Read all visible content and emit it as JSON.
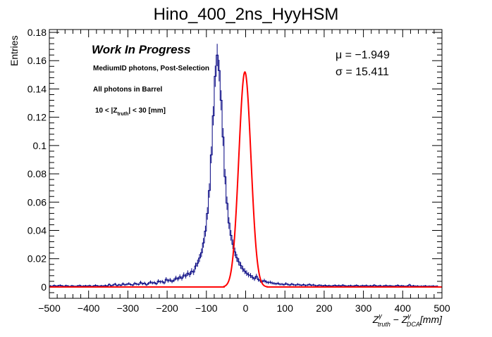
{
  "chart_data": {
    "type": "histogram",
    "title": "Hino_400_2ns_HyyHSM",
    "xlabel": "Z^γ_truth − Z^γ_DCA [mm]",
    "xlabel_parts": {
      "z1": "Z",
      "sup1": "γ",
      "sub1": "truth",
      "minus": " − ",
      "z2": "Z",
      "sup2": "γ",
      "sub2": "DCA",
      "unit": "[mm]"
    },
    "ylabel": "Entries",
    "xlim": [
      -500,
      500
    ],
    "ylim": [
      -0.008,
      0.182
    ],
    "x_ticks": [
      -500,
      -400,
      -300,
      -200,
      -100,
      0,
      100,
      200,
      300,
      400,
      500
    ],
    "x_tick_labels": [
      "−500",
      "−400",
      "−300",
      "−200",
      "−100",
      "0",
      "100",
      "200",
      "300",
      "400",
      "500"
    ],
    "y_ticks": [
      0,
      0.02,
      0.04,
      0.06,
      0.08,
      0.1,
      0.12,
      0.14,
      0.16,
      0.18
    ],
    "y_tick_labels": [
      "0",
      "0.02",
      "0.04",
      "0.06",
      "0.08",
      "0.1",
      "0.12",
      "0.14",
      "0.16",
      "0.18"
    ],
    "annotations": {
      "status": "Work In Progress",
      "selection": "MediumID photons, Post-Selection",
      "region": "All photons in Barrel",
      "cut_prefix": "10 < |Z",
      "cut_sub": "truth",
      "cut_suffix": "| < 30 [mm]"
    },
    "fit_results": {
      "mu_label": "μ = −1.949",
      "sigma_label": "σ = 15.411",
      "mu": -1.949,
      "sigma": 15.411,
      "amplitude": 0.152
    },
    "histogram": {
      "name": "data",
      "color": "#00007f",
      "bin_width": 5,
      "x_start": -500,
      "values": [
        0.0007,
        0.0005,
        0.0011,
        0.0006,
        0.0009,
        0.0012,
        0.0008,
        0.0004,
        0.001,
        0.0007,
        0.0003,
        0.0009,
        0.0006,
        0.0004,
        0.0008,
        0.0011,
        0.0005,
        0.0007,
        0.0009,
        0.0006,
        0.001,
        0.0004,
        0.0007,
        0.0012,
        0.0008,
        0.0005,
        0.0009,
        0.0006,
        0.0011,
        0.0007,
        0.0018,
        0.0009,
        0.0014,
        0.0021,
        0.001,
        0.0016,
        0.0012,
        0.0023,
        0.0015,
        0.0019,
        0.0024,
        0.0017,
        0.0013,
        0.0026,
        0.0021,
        0.0018,
        0.0033,
        0.0022,
        0.0027,
        0.0015,
        0.0025,
        0.0035,
        0.0028,
        0.0031,
        0.0022,
        0.0042,
        0.0036,
        0.0038,
        0.0029,
        0.0055,
        0.0044,
        0.005,
        0.0039,
        0.0048,
        0.0064,
        0.0056,
        0.0072,
        0.0061,
        0.0085,
        0.0077,
        0.0098,
        0.0088,
        0.0112,
        0.0105,
        0.0148,
        0.0168,
        0.0205,
        0.0242,
        0.0312,
        0.0395,
        0.052,
        0.0682,
        0.0934,
        0.121,
        0.149,
        0.164,
        0.153,
        0.132,
        0.106,
        0.078,
        0.0592,
        0.0452,
        0.0365,
        0.0302,
        0.0248,
        0.0206,
        0.0178,
        0.0152,
        0.0128,
        0.0112,
        0.0098,
        0.0086,
        0.0081,
        0.0068,
        0.0058,
        0.0076,
        0.0052,
        0.0044,
        0.0039,
        0.0045,
        0.0036,
        0.0031,
        0.0034,
        0.0028,
        0.0025,
        0.0022,
        0.0026,
        0.0019,
        0.002,
        0.0016,
        0.0024,
        0.0018,
        0.0014,
        0.0021,
        0.0016,
        0.0013,
        0.0019,
        0.0015,
        0.0012,
        0.0017,
        0.0011,
        0.0014,
        0.0018,
        0.0012,
        0.0015,
        0.001,
        0.0009,
        0.0013,
        0.0011,
        0.0008,
        0.0012,
        0.0007,
        0.001,
        0.0006,
        0.0009,
        0.0012,
        0.0008,
        0.0011,
        0.0007,
        0.0013,
        0.0009,
        0.0006,
        0.0008,
        0.001,
        0.0005,
        0.0009,
        0.0012,
        0.0007,
        0.0006,
        0.001,
        0.0008,
        0.0011,
        0.0005,
        0.0009,
        0.0007,
        0.0013,
        0.0008,
        0.0006,
        0.001,
        0.0004,
        0.0008,
        0.0011,
        0.0006,
        0.0009,
        0.0007,
        0.0005,
        0.0008,
        0.0012,
        0.0006,
        0.0009,
        0.0007,
        0.0004,
        0.0008,
        0.0015,
        0.0006,
        0.0009,
        0.0005,
        0.0007,
        0.0004,
        0.0006,
        0.0005,
        0.0008,
        0.0004,
        0.0006,
        0.0005,
        0.0007,
        0.0004,
        0.0006
      ]
    },
    "fit_curve": {
      "name": "gaussian fit",
      "color": "#ff0000",
      "range": [
        -55,
        55
      ]
    }
  }
}
